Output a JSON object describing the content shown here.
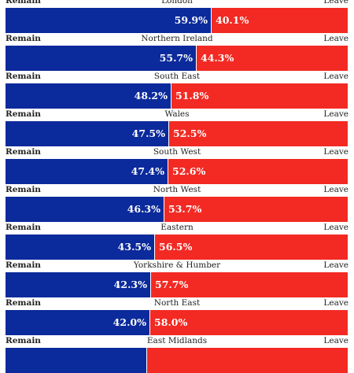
{
  "chart_data": {
    "type": "bar",
    "orientation": "horizontal-stacked",
    "left_label": "Remain",
    "right_label": "Leave",
    "unit": "%",
    "colors": {
      "remain": "#0b2a9b",
      "leave": "#f22a23"
    },
    "regions": [
      {
        "name": "London",
        "remain": 59.9,
        "leave": 40.1,
        "remain_label": "59.9%",
        "leave_label": "40.1%"
      },
      {
        "name": "Northern Ireland",
        "remain": 55.7,
        "leave": 44.3,
        "remain_label": "55.7%",
        "leave_label": "44.3%"
      },
      {
        "name": "South East",
        "remain": 48.2,
        "leave": 51.8,
        "remain_label": "48.2%",
        "leave_label": "51.8%"
      },
      {
        "name": "Wales",
        "remain": 47.5,
        "leave": 52.5,
        "remain_label": "47.5%",
        "leave_label": "52.5%"
      },
      {
        "name": "South West",
        "remain": 47.4,
        "leave": 52.6,
        "remain_label": "47.4%",
        "leave_label": "52.6%"
      },
      {
        "name": "North West",
        "remain": 46.3,
        "leave": 53.7,
        "remain_label": "46.3%",
        "leave_label": "53.7%"
      },
      {
        "name": "Eastern",
        "remain": 43.5,
        "leave": 56.5,
        "remain_label": "43.5%",
        "leave_label": "56.5%"
      },
      {
        "name": "Yorkshire & Humber",
        "remain": 42.3,
        "leave": 57.7,
        "remain_label": "42.3%",
        "leave_label": "57.7%"
      },
      {
        "name": "North East",
        "remain": 42.0,
        "leave": 58.0,
        "remain_label": "42.0%",
        "leave_label": "58.0%"
      },
      {
        "name": "East Midlands",
        "remain": 41.2,
        "leave": 58.8,
        "remain_label": "",
        "leave_label": ""
      }
    ]
  }
}
